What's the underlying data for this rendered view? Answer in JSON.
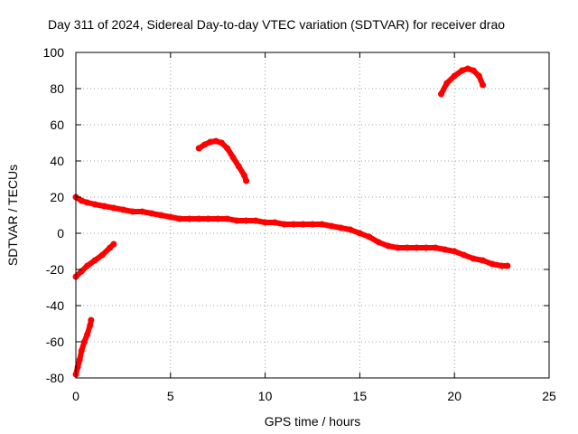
{
  "chart_data": {
    "type": "scatter",
    "title": "Day 311 of 2024, Sidereal Day-to-day VTEC variation (SDTVAR) for receiver drao",
    "xlabel": "GPS time / hours",
    "ylabel": "SDTVAR / TECUs",
    "xlim": [
      0,
      25
    ],
    "ylim": [
      -80,
      100
    ],
    "xticks": [
      0,
      5,
      10,
      15,
      20,
      25
    ],
    "yticks": [
      -80,
      -60,
      -40,
      -20,
      0,
      20,
      40,
      60,
      80,
      100
    ],
    "grid": true,
    "series_color": "#ff0000",
    "series": [
      {
        "name": "main-trend",
        "x": [
          0,
          0.3,
          0.6,
          1.0,
          1.5,
          2.0,
          2.5,
          3.0,
          3.5,
          4.0,
          4.5,
          5.0,
          5.5,
          6.0,
          6.5,
          7.0,
          7.5,
          8.0,
          8.5,
          9.0,
          9.5,
          10.0,
          10.5,
          11.0,
          11.5,
          12.0,
          12.5,
          13.0,
          13.5,
          14.0,
          14.5,
          15.0,
          15.5,
          16.0,
          16.5,
          17.0,
          17.5,
          18.0,
          18.5,
          19.0,
          19.5,
          20.0,
          20.5,
          21.0,
          21.5,
          22.0,
          22.5,
          22.8
        ],
        "y": [
          20,
          18,
          17,
          16,
          15,
          14,
          13,
          12,
          12,
          11,
          10,
          9,
          8,
          8,
          8,
          8,
          8,
          8,
          7,
          7,
          7,
          6,
          6,
          5,
          5,
          5,
          5,
          5,
          4,
          3,
          2,
          0,
          -2,
          -5,
          -7,
          -8,
          -8,
          -8,
          -8,
          -8,
          -9,
          -10,
          -12,
          -14,
          -15,
          -17,
          -18,
          -18
        ]
      },
      {
        "name": "arc-mid",
        "x": [
          6.5,
          6.8,
          7.1,
          7.4,
          7.7,
          8.0,
          8.3,
          8.6,
          8.9,
          9.0
        ],
        "y": [
          47,
          49,
          50.5,
          51,
          50,
          47,
          42,
          37,
          32,
          29
        ]
      },
      {
        "name": "arc-top",
        "x": [
          19.3,
          19.6,
          20.0,
          20.4,
          20.7,
          21.0,
          21.3,
          21.5
        ],
        "y": [
          77,
          83,
          87,
          90,
          91,
          90,
          87,
          82
        ]
      },
      {
        "name": "rise-left",
        "x": [
          0,
          0.3,
          0.6,
          1.0,
          1.4,
          1.8,
          2.0
        ],
        "y": [
          -24,
          -21,
          -18,
          -15,
          -12,
          -8,
          -6
        ]
      },
      {
        "name": "steep-rise",
        "x": [
          0,
          0.1,
          0.2,
          0.3,
          0.45,
          0.6,
          0.75,
          0.8
        ],
        "y": [
          -78,
          -74,
          -70,
          -65,
          -60,
          -56,
          -51,
          -48
        ]
      }
    ]
  }
}
